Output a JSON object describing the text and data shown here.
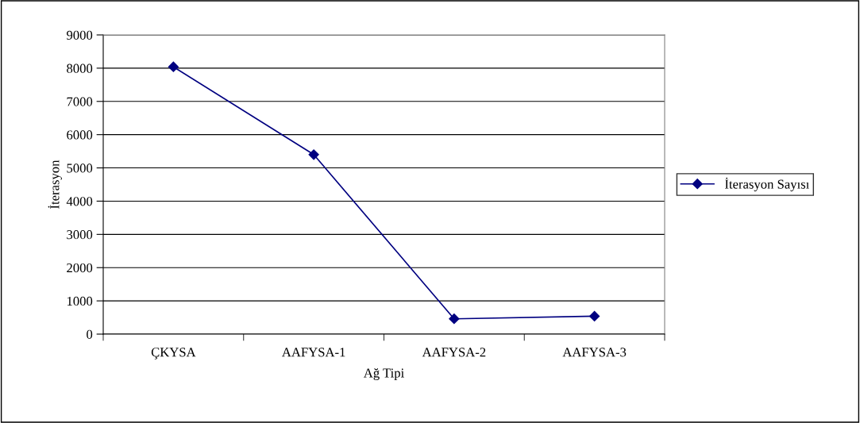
{
  "chart_data": {
    "type": "line",
    "xlabel": "Ağ Tipi",
    "ylabel": "İterasyon",
    "categories": [
      "ÇKYSA",
      "AAFYSA-1",
      "AAFYSA-2",
      "AAFYSA-3"
    ],
    "series": [
      {
        "name": "İterasyon Sayısı",
        "color": "#000080",
        "values": [
          8040,
          5400,
          460,
          540
        ]
      }
    ],
    "ylim": [
      0,
      9000
    ],
    "yticks": [
      0,
      1000,
      2000,
      3000,
      4000,
      5000,
      6000,
      7000,
      8000,
      9000
    ],
    "grid": "y",
    "legend": "right",
    "marker": "diamond",
    "line_style": "solid"
  }
}
